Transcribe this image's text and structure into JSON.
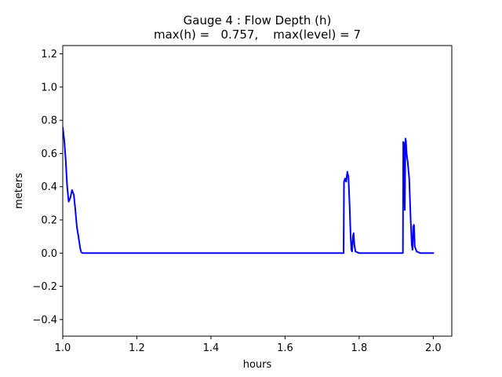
{
  "chart_data": {
    "type": "line",
    "title_line1": "Gauge 4 : Flow Depth (h)",
    "title_line2": "max(h) =   0.757,    max(level) = 7",
    "xlabel": "hours",
    "ylabel": "meters",
    "xlim": [
      1.0,
      2.05
    ],
    "ylim": [
      -0.5,
      1.25
    ],
    "xticks": [
      1.0,
      1.2,
      1.4,
      1.6,
      1.8,
      2.0
    ],
    "yticks": [
      -0.4,
      -0.2,
      0.0,
      0.2,
      0.4,
      0.6,
      0.8,
      1.0,
      1.2
    ],
    "grid": false,
    "series": [
      {
        "color": "#0000ff",
        "x": [
          1.0,
          1.004,
          1.008,
          1.012,
          1.016,
          1.02,
          1.025,
          1.03,
          1.034,
          1.038,
          1.043,
          1.047,
          1.05,
          1.053,
          1.06,
          1.1,
          1.2,
          1.3,
          1.4,
          1.5,
          1.6,
          1.7,
          1.755,
          1.758,
          1.759,
          1.762,
          1.765,
          1.768,
          1.771,
          1.774,
          1.777,
          1.779,
          1.781,
          1.783,
          1.785,
          1.787,
          1.79,
          1.8,
          1.85,
          1.9,
          1.918,
          1.919,
          1.921,
          1.923,
          1.925,
          1.926,
          1.928,
          1.931,
          1.935,
          1.939,
          1.942,
          1.944,
          1.946,
          1.948,
          1.95,
          1.955,
          1.965,
          2.0
        ],
        "y": [
          0.757,
          0.68,
          0.56,
          0.4,
          0.31,
          0.33,
          0.38,
          0.35,
          0.26,
          0.16,
          0.09,
          0.03,
          0.005,
          0.001,
          0.0,
          0.0,
          0.0,
          0.0,
          0.0,
          0.0,
          0.0,
          0.0,
          0.0,
          0.0,
          0.43,
          0.45,
          0.43,
          0.49,
          0.46,
          0.3,
          0.1,
          0.02,
          0.01,
          0.1,
          0.12,
          0.05,
          0.01,
          0.0,
          0.0,
          0.0,
          0.0,
          0.67,
          0.66,
          0.26,
          0.69,
          0.68,
          0.6,
          0.55,
          0.45,
          0.2,
          0.05,
          0.02,
          0.16,
          0.17,
          0.04,
          0.01,
          0.0,
          0.0
        ]
      }
    ]
  }
}
